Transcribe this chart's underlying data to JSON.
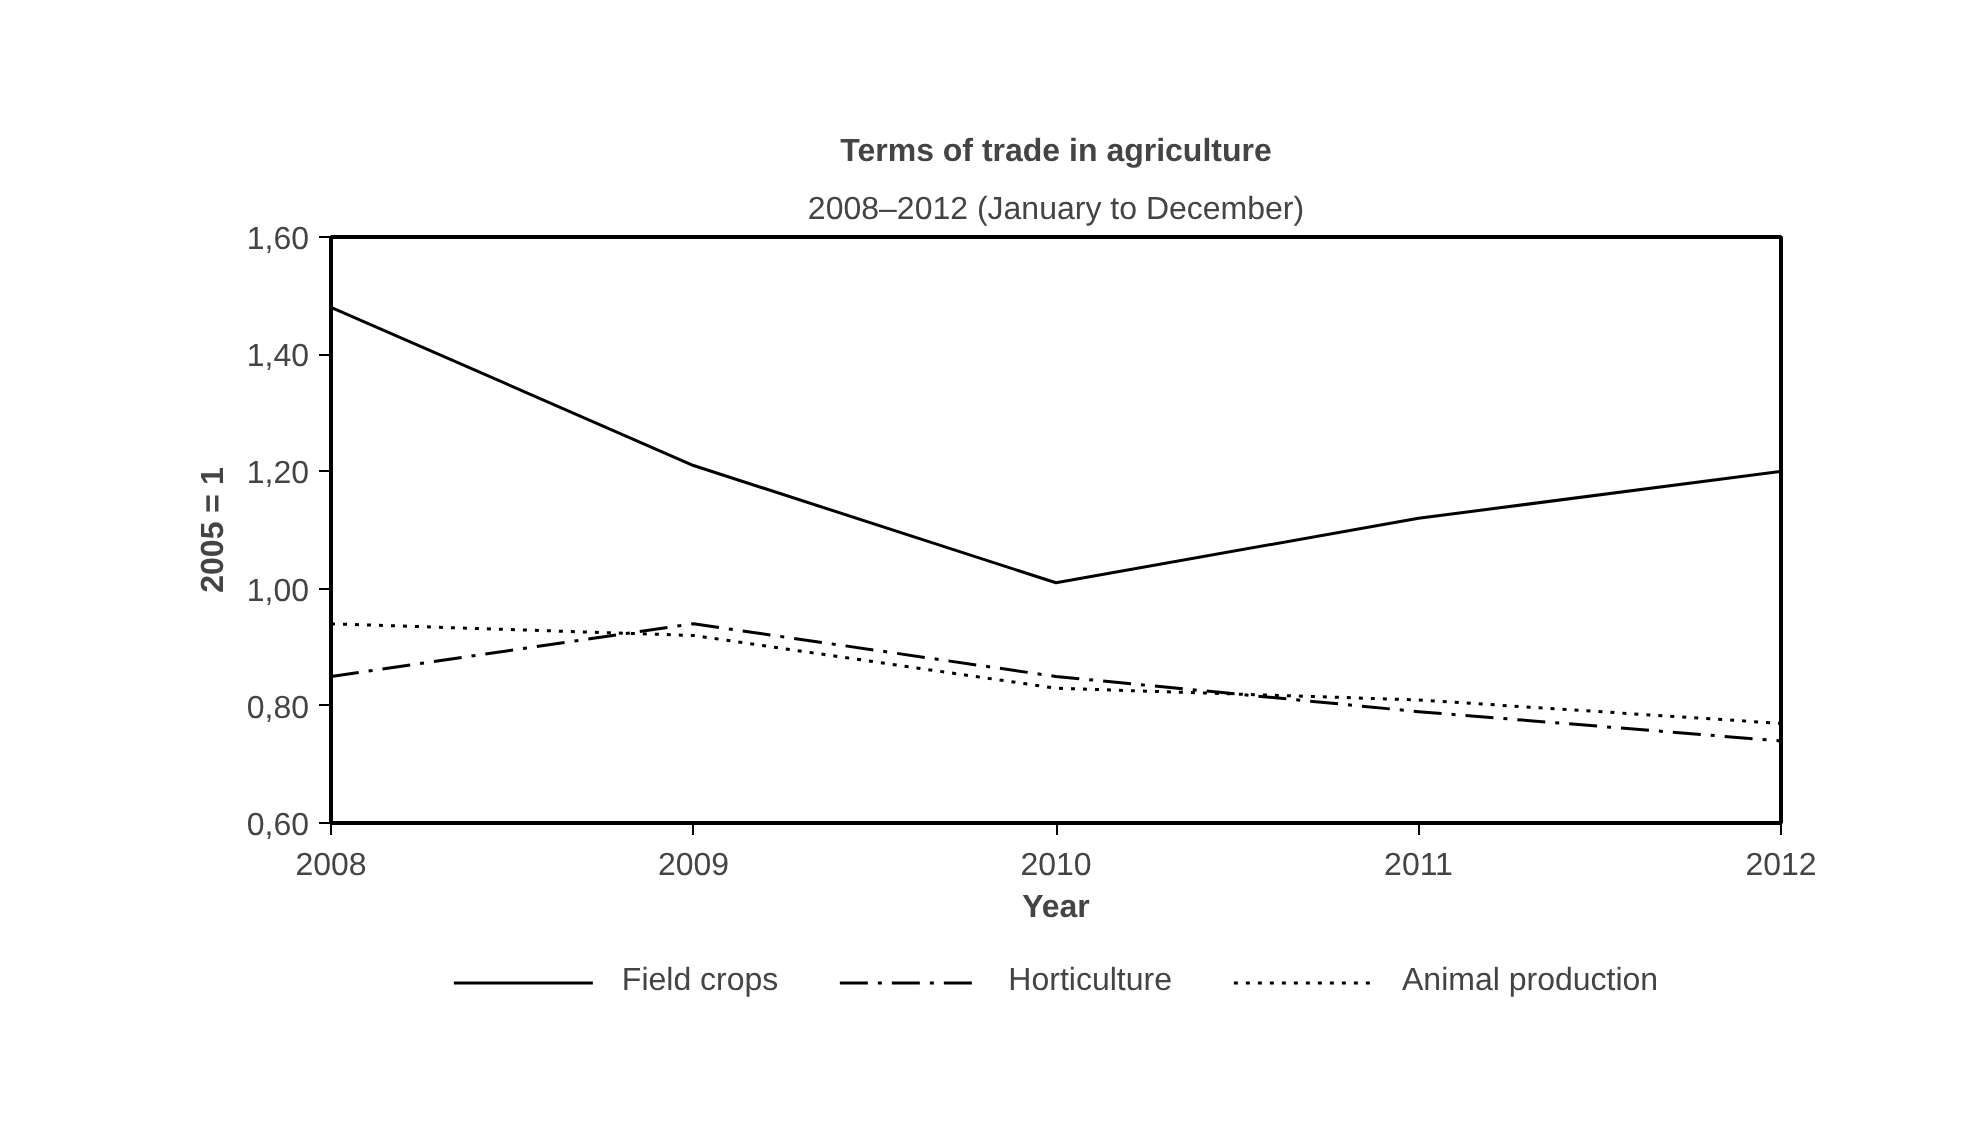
{
  "chart_data": {
    "type": "line",
    "title": "Terms of trade in agriculture",
    "subtitle": "2008–2012 (January to December)",
    "xlabel": "Year",
    "ylabel": "2005 = 1",
    "x": [
      2008,
      2009,
      2010,
      2011,
      2012
    ],
    "series": [
      {
        "name": "Field crops",
        "color": "#000000",
        "line_style": "solid",
        "values": [
          1.48,
          1.21,
          1.01,
          1.12,
          1.2
        ]
      },
      {
        "name": "Horticulture",
        "color": "#000000",
        "line_style": "dashdot",
        "values": [
          0.85,
          0.94,
          0.85,
          0.79,
          0.74
        ]
      },
      {
        "name": "Animal production",
        "color": "#000000",
        "line_style": "dotted",
        "values": [
          0.94,
          0.92,
          0.83,
          0.81,
          0.77
        ]
      }
    ],
    "xlim": [
      2008,
      2012
    ],
    "xticks": [
      2008,
      2009,
      2010,
      2011,
      2012
    ],
    "ylim": [
      0.6,
      1.6
    ],
    "yticks": [
      {
        "value": 0.6,
        "label": "0,60"
      },
      {
        "value": 0.8,
        "label": "0,80"
      },
      {
        "value": 1.0,
        "label": "1,00"
      },
      {
        "value": 1.2,
        "label": "1,20"
      },
      {
        "value": 1.4,
        "label": "1,40"
      },
      {
        "value": 1.6,
        "label": "1,60"
      }
    ],
    "grid": false,
    "legend": "bottom",
    "marker": "none"
  }
}
